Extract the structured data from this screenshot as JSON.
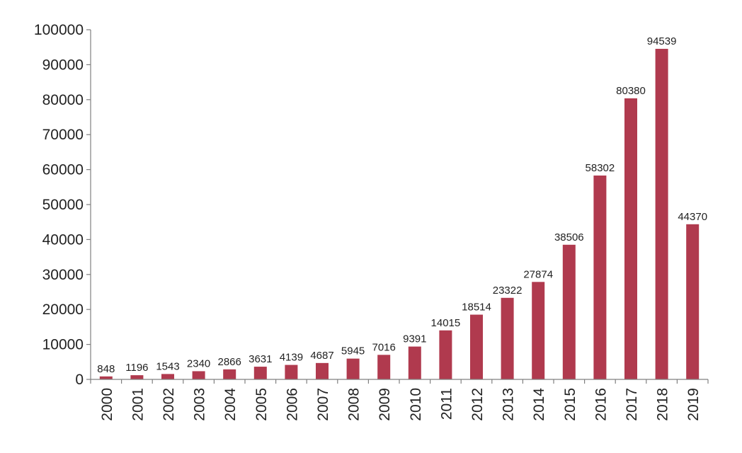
{
  "chart_data": {
    "type": "bar",
    "categories": [
      "2000",
      "2001",
      "2002",
      "2003",
      "2004",
      "2005",
      "2006",
      "2007",
      "2008",
      "2009",
      "2010",
      "2011",
      "2012",
      "2013",
      "2014",
      "2015",
      "2016",
      "2017",
      "2018",
      "2019"
    ],
    "values": [
      848,
      1196,
      1543,
      2340,
      2866,
      3631,
      4139,
      4687,
      5945,
      7016,
      9391,
      14015,
      18514,
      23322,
      27874,
      38506,
      58302,
      80380,
      94539,
      44370
    ],
    "title": "",
    "xlabel": "",
    "ylabel": "",
    "ylim": [
      0,
      100000
    ],
    "yticks": [
      0,
      10000,
      20000,
      30000,
      40000,
      50000,
      60000,
      70000,
      80000,
      90000,
      100000
    ],
    "grid": false,
    "data_labels": true,
    "bar_color": "#b03a4e"
  }
}
